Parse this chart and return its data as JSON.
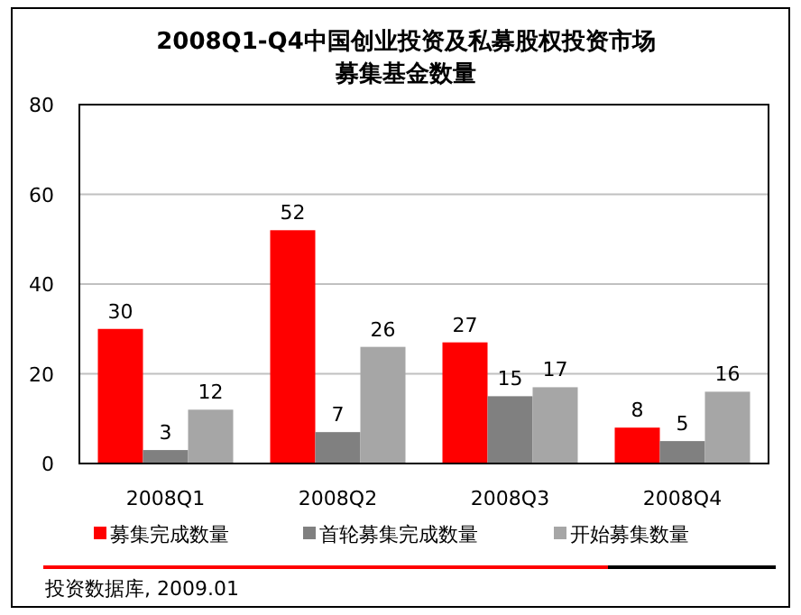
{
  "chart_data": {
    "type": "bar",
    "title": "2008Q1-Q4中国创业投资及私募股权投资市场",
    "subtitle": "募集基金数量",
    "categories": [
      "2008Q1",
      "2008Q2",
      "2008Q3",
      "2008Q4"
    ],
    "series": [
      {
        "name": "募集完成数量",
        "color": "#ff0000",
        "values": [
          30,
          52,
          27,
          8
        ]
      },
      {
        "name": "首轮募集完成数量",
        "color": "#808080",
        "values": [
          3,
          7,
          15,
          5
        ]
      },
      {
        "name": "开始募集数量",
        "color": "#a6a6a6",
        "values": [
          12,
          26,
          17,
          16
        ]
      }
    ],
    "ylim": [
      0,
      80
    ],
    "yticks": [
      0,
      20,
      40,
      60,
      80
    ],
    "grid": "y",
    "legend": "bottom",
    "data_labels": true,
    "annotations": [
      "投资数据库, 2009.01"
    ]
  }
}
